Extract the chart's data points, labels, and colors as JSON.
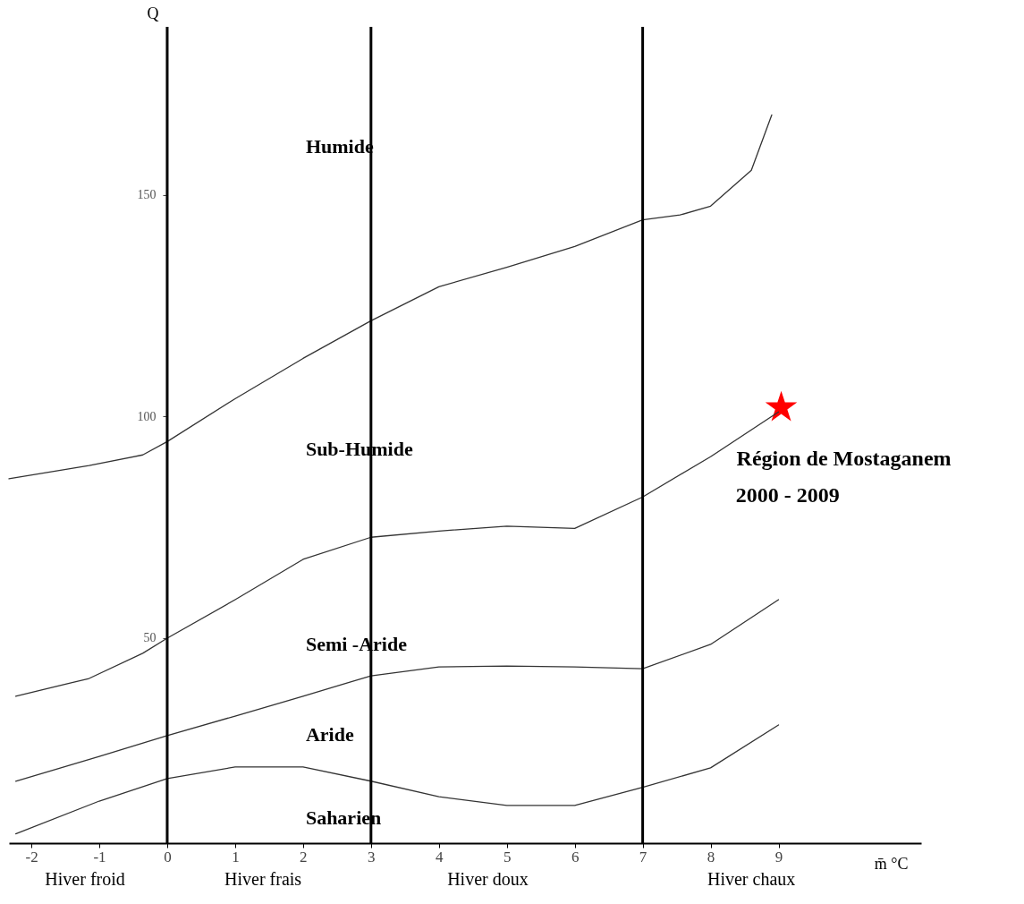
{
  "chart_data": {
    "type": "line",
    "xlabel": "m̄ °C",
    "ylabel": "Q",
    "xlim": [
      -2.33,
      11.1
    ],
    "ylim": [
      3.6,
      188
    ],
    "xticks": [
      -2,
      -1,
      0,
      1,
      2,
      3,
      4,
      5,
      6,
      7,
      8,
      9
    ],
    "yticks": [
      50,
      100,
      150
    ],
    "series": [
      {
        "color": "#333333",
        "x": [
          -2.33,
          -1.15,
          -0.36,
          0,
          1,
          2,
          3,
          4,
          5,
          6,
          7,
          7.55,
          8,
          8.6,
          8.9
        ],
        "values": [
          85.9,
          88.9,
          91.3,
          94.3,
          104.0,
          113.1,
          121.6,
          129.3,
          133.7,
          138.4,
          144.4,
          145.5,
          147.5,
          155.6,
          168.1
        ]
      },
      {
        "color": "#333333",
        "x": [
          -2.23,
          -1.15,
          -0.36,
          0,
          1,
          2,
          3,
          4,
          5,
          6,
          7,
          8,
          9
        ],
        "values": [
          36.8,
          40.8,
          46.5,
          49.9,
          58.6,
          67.7,
          72.7,
          74.1,
          75.2,
          74.7,
          81.8,
          90.9,
          101.0
        ]
      },
      {
        "color": "#333333",
        "x": [
          -2.23,
          -1,
          0,
          1,
          2,
          3,
          4,
          5,
          6,
          7,
          8,
          9
        ],
        "values": [
          17.6,
          23.2,
          27.9,
          32.3,
          36.8,
          41.4,
          43.4,
          43.6,
          43.4,
          43.0,
          48.5,
          58.6
        ]
      },
      {
        "color": "#333333",
        "x": [
          -2.23,
          -1,
          0,
          1,
          2,
          3,
          4,
          5,
          6,
          7,
          8,
          9
        ],
        "values": [
          5.7,
          13.1,
          18.2,
          20.8,
          20.8,
          17.6,
          14.1,
          12.1,
          12.1,
          16.2,
          20.6,
          30.3
        ]
      },
      {
        "type": "scatter",
        "marker": "star",
        "color": "#ff0000",
        "x": [
          9.04
        ],
        "values": [
          102
        ]
      }
    ],
    "ref_lines": [
      {
        "axis": "x",
        "value": 0,
        "color": "#000000"
      },
      {
        "axis": "x",
        "value": 3,
        "color": "#000000"
      },
      {
        "axis": "x",
        "value": 7,
        "color": "#000000"
      }
    ],
    "annotations": [
      "Humide",
      "Sub-Humide",
      "Semi -Aride",
      "Aride",
      "Saharien",
      {
        "text": "Région de Mostaganem",
        "x": 9.04,
        "y": 102
      },
      "2000 - 2009",
      "Hiver froid",
      "Hiver frais",
      "Hiver doux",
      "Hiver chaux"
    ]
  }
}
